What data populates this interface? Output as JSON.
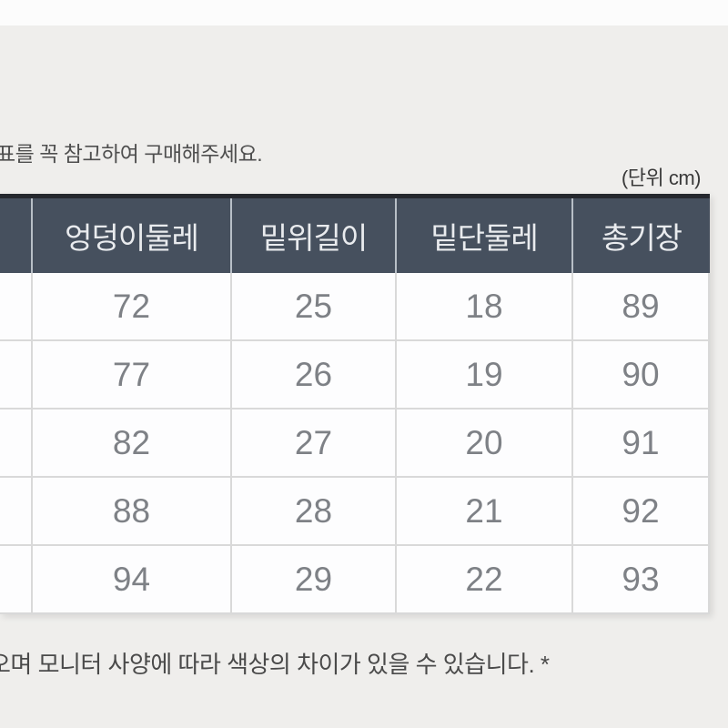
{
  "caption": "표를 꼭 참고하여 구매해주세요.",
  "unit_label": "(단위 cm)",
  "table": {
    "columns": [
      "",
      "엉덩이둘레",
      "밑위길이",
      "밑단둘레",
      "총기장"
    ],
    "rows": [
      {
        "label": "",
        "values": [
          "72",
          "25",
          "18",
          "89"
        ]
      },
      {
        "label": "",
        "values": [
          "77",
          "26",
          "19",
          "90"
        ]
      },
      {
        "label": "",
        "values": [
          "82",
          "27",
          "20",
          "91"
        ]
      },
      {
        "label": "",
        "values": [
          "88",
          "28",
          "21",
          "92"
        ]
      },
      {
        "label": "",
        "values": [
          "94",
          "29",
          "22",
          "93"
        ]
      }
    ]
  },
  "footnote": "오며 모니터 사양에 따라 색상의 차이가 있을 수 있습니다. *",
  "colors": {
    "page_background": "#efeeec",
    "top_band": "#fcfcfc",
    "header_background": "#46505e",
    "header_top_border": "#25282e",
    "header_text": "#e9ebee",
    "cell_background": "#fdfdfe",
    "cell_border": "#d9d9d9",
    "number_text": "#7e8186",
    "note_text": "#4a4a4a"
  }
}
